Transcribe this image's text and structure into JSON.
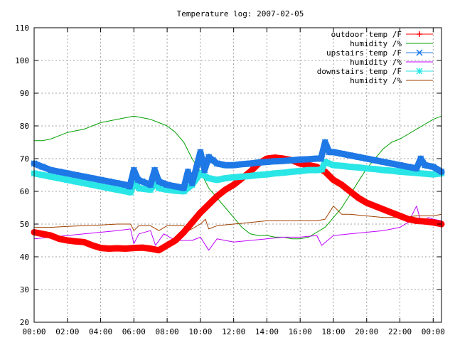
{
  "chart_data": {
    "type": "line",
    "title": "Temperature log: 2007-02-05",
    "xlabel": "",
    "ylabel": "",
    "xlim": [
      0,
      24.5
    ],
    "ylim": [
      20,
      110
    ],
    "grid": true,
    "legend_position": "top-right",
    "x_ticks": [
      {
        "value": 0,
        "label": "00:00"
      },
      {
        "value": 2,
        "label": "02:00"
      },
      {
        "value": 4,
        "label": "04:00"
      },
      {
        "value": 6,
        "label": "06:00"
      },
      {
        "value": 8,
        "label": "08:00"
      },
      {
        "value": 10,
        "label": "10:00"
      },
      {
        "value": 12,
        "label": "12:00"
      },
      {
        "value": 14,
        "label": "14:00"
      },
      {
        "value": 16,
        "label": "16:00"
      },
      {
        "value": 18,
        "label": "18:00"
      },
      {
        "value": 20,
        "label": "20:00"
      },
      {
        "value": 22,
        "label": "22:00"
      },
      {
        "value": 24,
        "label": "00:00"
      }
    ],
    "y_ticks": [
      {
        "value": 20,
        "label": "20"
      },
      {
        "value": 30,
        "label": "30"
      },
      {
        "value": 40,
        "label": "40"
      },
      {
        "value": 50,
        "label": "50"
      },
      {
        "value": 60,
        "label": "60"
      },
      {
        "value": 70,
        "label": "70"
      },
      {
        "value": 80,
        "label": "80"
      },
      {
        "value": 90,
        "label": "90"
      },
      {
        "value": 100,
        "label": "100"
      },
      {
        "value": 110,
        "label": "110"
      }
    ],
    "series": [
      {
        "name": "outdoor temp /F",
        "color": "#ff0000",
        "marker": "plus",
        "x": [
          0,
          0.5,
          1,
          1.5,
          2,
          2.5,
          3,
          3.5,
          4,
          4.5,
          5,
          5.5,
          6,
          6.5,
          7,
          7.5,
          8,
          8.5,
          9,
          9.5,
          10,
          10.5,
          11,
          11.5,
          12,
          12.5,
          13,
          13.5,
          14,
          14.5,
          15,
          15.5,
          16,
          16.5,
          17,
          17.5,
          18,
          18.5,
          19,
          19.5,
          20,
          20.5,
          21,
          21.5,
          22,
          22.5,
          23,
          23.5,
          24,
          24.5
        ],
        "values": [
          47.5,
          47,
          46.5,
          45.5,
          45,
          44.7,
          44.5,
          43.5,
          42.7,
          42.5,
          42.6,
          42.5,
          42.7,
          42.8,
          42.5,
          42,
          43.5,
          45,
          47.5,
          50.5,
          53.5,
          56,
          58.5,
          60.5,
          62,
          64,
          66,
          68.5,
          70,
          70.3,
          70,
          69.5,
          68.5,
          68,
          67.5,
          66,
          63.5,
          62,
          60,
          58,
          56.5,
          55.5,
          54.5,
          53.5,
          52.5,
          51.5,
          51,
          50.8,
          50.5,
          50
        ]
      },
      {
        "name": "humidity /%",
        "color": "#00a000",
        "marker": "none",
        "x": [
          0,
          0.5,
          1,
          1.5,
          2,
          2.5,
          3,
          3.5,
          4,
          4.5,
          5,
          5.5,
          6,
          6.5,
          7,
          7.5,
          8,
          8.5,
          9,
          9.5,
          10,
          10.5,
          11,
          11.5,
          12,
          12.5,
          13,
          13.5,
          14,
          14.5,
          15,
          15.5,
          16,
          16.5,
          17,
          17.5,
          18,
          18.5,
          19,
          19.5,
          20,
          20.5,
          21,
          21.5,
          22,
          22.5,
          23,
          23.5,
          24,
          24.5
        ],
        "values": [
          75.5,
          75.5,
          76,
          77,
          78,
          78.5,
          79,
          80,
          81,
          81.5,
          82,
          82.5,
          83,
          82.5,
          82,
          81,
          80,
          78,
          75,
          70,
          66,
          61,
          58,
          55,
          52,
          49,
          47,
          46.5,
          46.5,
          46,
          46,
          45.5,
          45.5,
          46,
          47.5,
          49,
          52,
          55,
          59,
          63,
          67,
          70,
          73,
          75,
          76,
          77.5,
          79,
          80.5,
          82,
          83
        ]
      },
      {
        "name": "upstairs temp /F",
        "color": "#1e78e6",
        "marker": "cross",
        "x": [
          0,
          0.5,
          1,
          1.5,
          2,
          2.5,
          3,
          3.5,
          4,
          4.5,
          5,
          5.5,
          5.75,
          6,
          6.25,
          6.5,
          7,
          7.25,
          7.5,
          7.75,
          8,
          8.5,
          9,
          9.25,
          9.5,
          9.75,
          10,
          10.25,
          10.5,
          10.75,
          11,
          11.5,
          12,
          12.5,
          13,
          13.5,
          14,
          14.5,
          15,
          15.5,
          16,
          16.5,
          17,
          17.25,
          17.5,
          17.75,
          18,
          18.5,
          19,
          19.5,
          20,
          20.5,
          21,
          21.5,
          22,
          22.5,
          23,
          23.25,
          23.5,
          24,
          24.5
        ],
        "values": [
          68.5,
          67.5,
          66.5,
          66,
          65.5,
          65,
          64.5,
          64,
          63.5,
          63,
          62.5,
          62,
          61.5,
          66.5,
          63.5,
          63,
          62,
          66.5,
          63,
          62.5,
          62,
          61.5,
          61,
          66,
          62.5,
          67,
          72,
          66.5,
          70.5,
          69.5,
          68.5,
          68,
          68,
          68.3,
          68.5,
          68.8,
          69,
          69.2,
          69.3,
          69.5,
          69.7,
          69.8,
          70,
          70,
          75,
          72,
          72,
          71.5,
          71,
          70.5,
          70,
          69.5,
          69,
          68.5,
          68,
          67.5,
          67,
          70,
          68,
          67.5,
          66
        ]
      },
      {
        "name": "humidity /%",
        "color": "#c000ff",
        "marker": "none",
        "x": [
          0,
          1,
          2,
          3,
          4,
          5,
          5.8,
          6,
          6.3,
          7,
          7.3,
          7.8,
          8.5,
          9,
          9.5,
          10,
          10.5,
          11,
          11.5,
          12,
          13,
          14,
          15,
          16,
          17,
          17.3,
          18,
          19,
          20,
          21,
          22,
          22.5,
          23,
          23.3,
          23.7,
          24,
          24.5
        ],
        "values": [
          45.5,
          46,
          46.5,
          47,
          47.5,
          48,
          48.5,
          44,
          47,
          48,
          43.5,
          47,
          45,
          45,
          45,
          46,
          42,
          45.5,
          45,
          44.5,
          45,
          45.5,
          46,
          46,
          46.5,
          43.5,
          46.5,
          47,
          47.5,
          48,
          49,
          50.5,
          55.5,
          50,
          52,
          51.5,
          51
        ]
      },
      {
        "name": "downstairs temp /F",
        "color": "#2ae6e6",
        "marker": "star",
        "x": [
          0,
          0.5,
          1,
          1.5,
          2,
          2.5,
          3,
          3.5,
          4,
          4.5,
          5,
          5.5,
          5.8,
          6,
          6.3,
          6.5,
          7,
          7.3,
          7.5,
          8,
          8.5,
          9,
          9.5,
          10,
          10.5,
          11,
          11.5,
          12,
          12.5,
          13,
          13.5,
          14,
          14.5,
          15,
          15.5,
          16,
          16.5,
          17,
          17.3,
          17.5,
          18,
          18.5,
          19,
          19.5,
          20,
          20.5,
          21,
          21.5,
          22,
          22.5,
          23,
          23.5,
          24,
          24.5
        ],
        "values": [
          65.5,
          65,
          64.5,
          64,
          63.5,
          63,
          62.5,
          62,
          61.5,
          61,
          60.5,
          60,
          59.7,
          62.5,
          61,
          60.8,
          60.5,
          62.5,
          61,
          60.5,
          60.2,
          60,
          62,
          65.5,
          64,
          63.5,
          64,
          64.3,
          64.5,
          64.7,
          65,
          65.2,
          65.5,
          65.7,
          66,
          66.2,
          66.5,
          66.5,
          66.7,
          69,
          68,
          67.8,
          67.5,
          67.3,
          67,
          66.8,
          66.5,
          66.3,
          66,
          65.8,
          65.6,
          65.4,
          65.2,
          65.5
        ]
      },
      {
        "name": "humidity /%",
        "color": "#a04000",
        "marker": "none",
        "x": [
          0,
          1,
          2,
          3,
          4,
          5,
          5.8,
          6,
          6.3,
          7,
          7.5,
          8,
          9,
          9.3,
          10,
          10.3,
          10.5,
          11,
          12,
          13,
          14,
          15,
          16,
          17,
          17.5,
          18,
          18.5,
          19,
          20,
          21,
          22,
          23,
          24,
          24.5
        ],
        "values": [
          49,
          49,
          49.3,
          49.5,
          49.7,
          50,
          50,
          48,
          49.5,
          49.5,
          48,
          49.5,
          49.5,
          48,
          50,
          51.5,
          48.5,
          49.5,
          50,
          50.5,
          51,
          51,
          51,
          51,
          51.5,
          55.5,
          53,
          53,
          52.5,
          52,
          52,
          52.5,
          52.5,
          53
        ]
      }
    ]
  }
}
